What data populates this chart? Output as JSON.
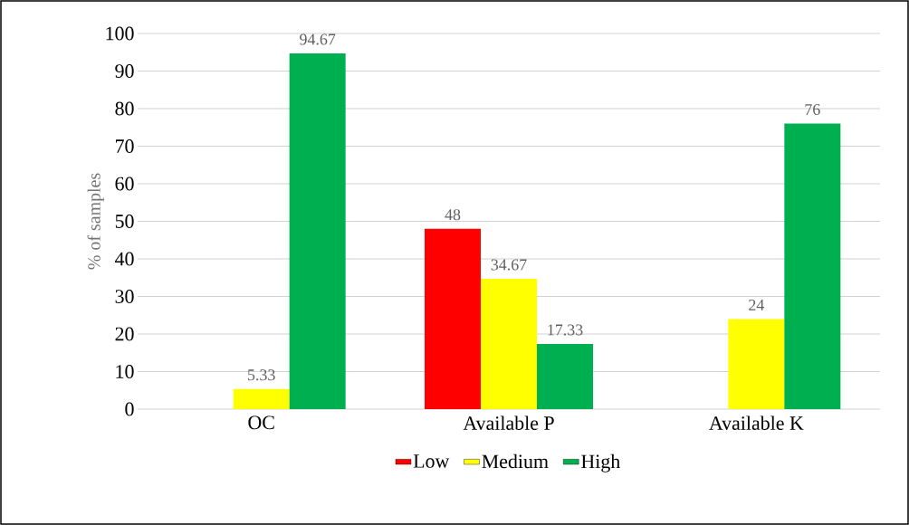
{
  "chart_data": {
    "type": "bar",
    "ylabel": "% of samples",
    "categories": [
      "OC",
      "Available P",
      "Available K"
    ],
    "series": [
      {
        "name": "Low",
        "color": "#ff0000",
        "values": [
          null,
          48,
          null
        ]
      },
      {
        "name": "Medium",
        "color": "#ffff00",
        "values": [
          5.33,
          34.67,
          24
        ]
      },
      {
        "name": "High",
        "color": "#00b050",
        "values": [
          94.67,
          17.33,
          76
        ]
      }
    ],
    "ylim": [
      0,
      100
    ],
    "yticks": [
      0,
      10,
      20,
      30,
      40,
      50,
      60,
      70,
      80,
      90,
      100
    ],
    "grid": "y",
    "legend": "bottom",
    "data_labels": true
  }
}
